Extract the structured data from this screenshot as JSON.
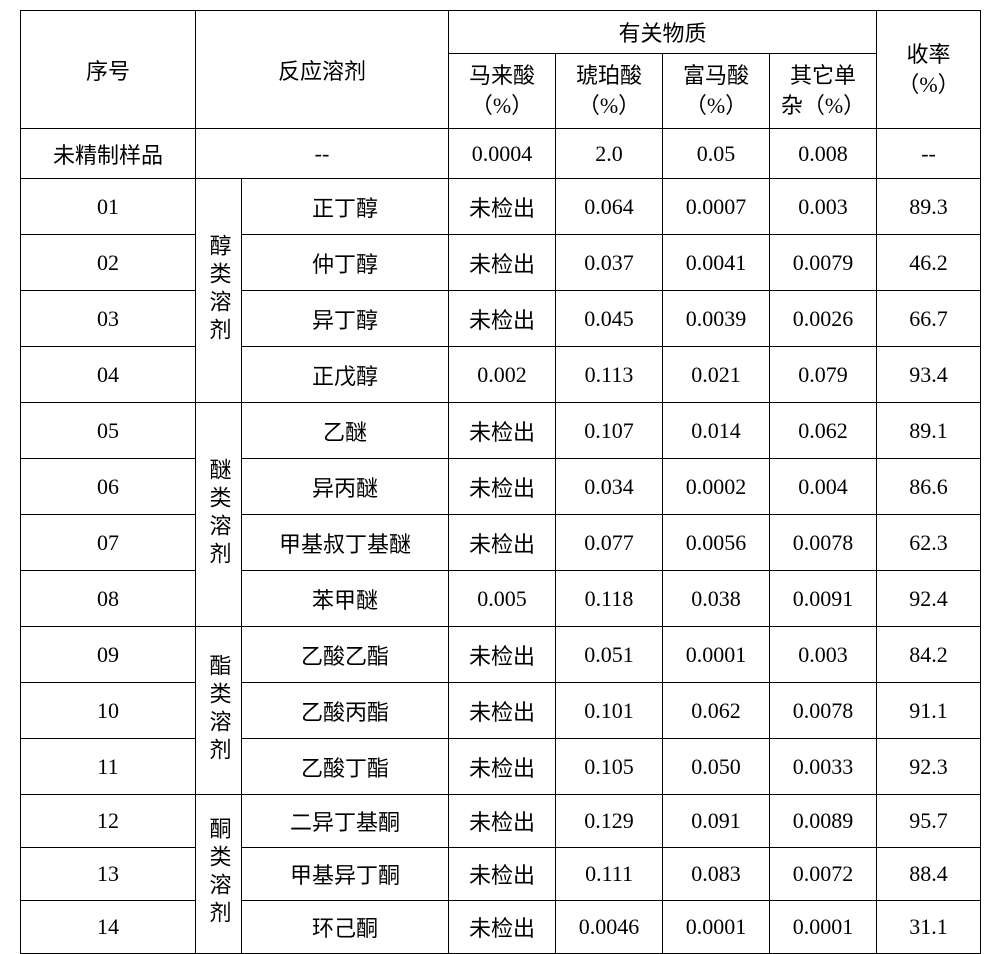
{
  "header": {
    "seq": "序号",
    "solvent": "反应溶剂",
    "related": "有关物质",
    "yield_l1": "收率",
    "yield_l2": "（%）",
    "maleic_l1": "马来酸",
    "maleic_l2": "（%）",
    "succinic_l1": "琥珀酸",
    "succinic_l2": "（%）",
    "fumaric_l1": "富马酸",
    "fumaric_l2": "（%）",
    "other_l1": "其它单",
    "other_l2": "杂（%）"
  },
  "ref": {
    "label": "未精制样品",
    "solvent": "--",
    "maleic": "0.0004",
    "succinic": "2.0",
    "fumaric": "0.05",
    "other": "0.008",
    "yield": "--"
  },
  "cats": {
    "alcohol": "醇类溶剂",
    "ether": "醚类溶剂",
    "ester": "酯类溶剂",
    "ketone": "酮类溶剂"
  },
  "rows": [
    {
      "seq": "01",
      "solv": "正丁醇",
      "maleic": "未检出",
      "succinic": "0.064",
      "fumaric": "0.0007",
      "other": "0.003",
      "yield": "89.3"
    },
    {
      "seq": "02",
      "solv": "仲丁醇",
      "maleic": "未检出",
      "succinic": "0.037",
      "fumaric": "0.0041",
      "other": "0.0079",
      "yield": "46.2"
    },
    {
      "seq": "03",
      "solv": "异丁醇",
      "maleic": "未检出",
      "succinic": "0.045",
      "fumaric": "0.0039",
      "other": "0.0026",
      "yield": "66.7"
    },
    {
      "seq": "04",
      "solv": "正戊醇",
      "maleic": "0.002",
      "succinic": "0.113",
      "fumaric": "0.021",
      "other": "0.079",
      "yield": "93.4"
    },
    {
      "seq": "05",
      "solv": "乙醚",
      "maleic": "未检出",
      "succinic": "0.107",
      "fumaric": "0.014",
      "other": "0.062",
      "yield": "89.1"
    },
    {
      "seq": "06",
      "solv": "异丙醚",
      "maleic": "未检出",
      "succinic": "0.034",
      "fumaric": "0.0002",
      "other": "0.004",
      "yield": "86.6"
    },
    {
      "seq": "07",
      "solv": "甲基叔丁基醚",
      "maleic": "未检出",
      "succinic": "0.077",
      "fumaric": "0.0056",
      "other": "0.0078",
      "yield": "62.3"
    },
    {
      "seq": "08",
      "solv": "苯甲醚",
      "maleic": "0.005",
      "succinic": "0.118",
      "fumaric": "0.038",
      "other": "0.0091",
      "yield": "92.4"
    },
    {
      "seq": "09",
      "solv": "乙酸乙酯",
      "maleic": "未检出",
      "succinic": "0.051",
      "fumaric": "0.0001",
      "other": "0.003",
      "yield": "84.2"
    },
    {
      "seq": "10",
      "solv": "乙酸丙酯",
      "maleic": "未检出",
      "succinic": "0.101",
      "fumaric": "0.062",
      "other": "0.0078",
      "yield": "91.1"
    },
    {
      "seq": "11",
      "solv": "乙酸丁酯",
      "maleic": "未检出",
      "succinic": "0.105",
      "fumaric": "0.050",
      "other": "0.0033",
      "yield": "92.3"
    },
    {
      "seq": "12",
      "solv": "二异丁基酮",
      "maleic": "未检出",
      "succinic": "0.129",
      "fumaric": "0.091",
      "other": "0.0089",
      "yield": "95.7"
    },
    {
      "seq": "13",
      "solv": "甲基异丁酮",
      "maleic": "未检出",
      "succinic": "0.111",
      "fumaric": "0.083",
      "other": "0.0072",
      "yield": "88.4"
    },
    {
      "seq": "14",
      "solv": "环己酮",
      "maleic": "未检出",
      "succinic": "0.0046",
      "fumaric": "0.0001",
      "other": "0.0001",
      "yield": "31.1"
    }
  ]
}
